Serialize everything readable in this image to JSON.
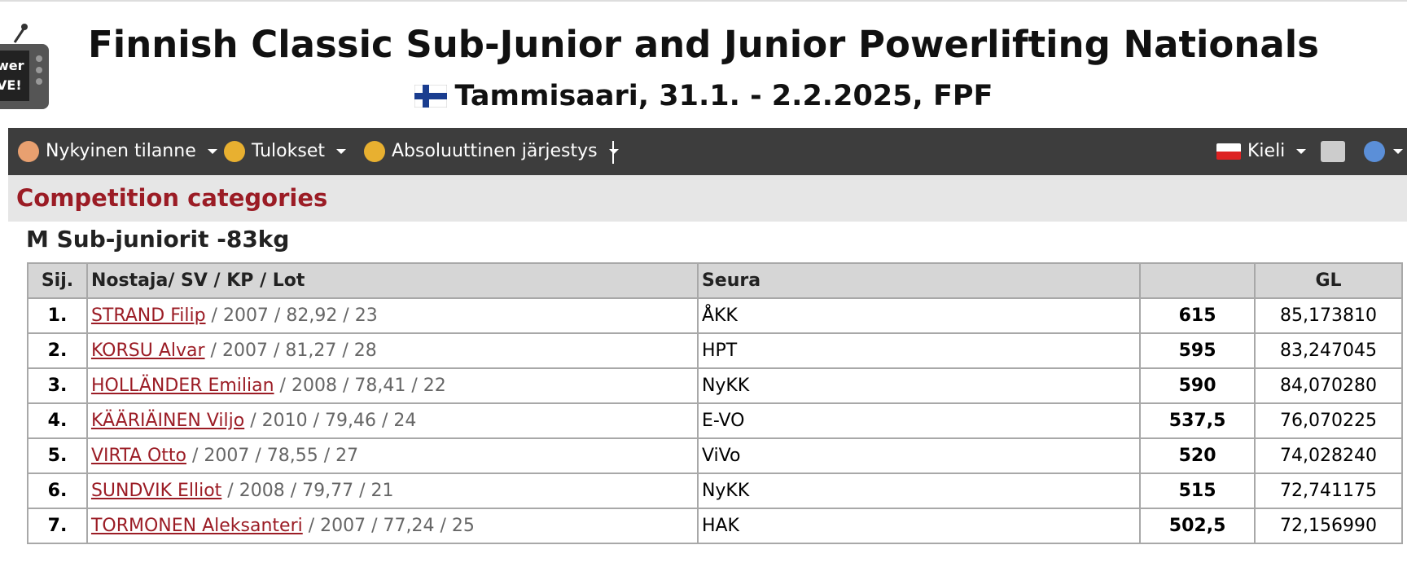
{
  "logo_text": [
    "wer",
    "VE!"
  ],
  "header": {
    "title": "Finnish Classic Sub-Junior and Junior Powerlifting Nationals",
    "subtitle": "Tammisaari, 31.1. - 2.2.2025, FPF"
  },
  "menu": {
    "left": [
      "Nykyinen tilanne",
      "Tulokset",
      "Absoluuttinen järjestys"
    ],
    "right": [
      "Kieli"
    ]
  },
  "section_title": "Competition categories",
  "category_title": "M Sub-juniorit -83kg",
  "table": {
    "headers": {
      "rank": "Sij.",
      "lifter": "Nostaja/ SV / KP / Lot",
      "club": "Seura",
      "gl": "GL"
    },
    "rows": [
      {
        "rank": "1.",
        "name": "STRAND Filip",
        "details": " / 2007 / 82,92 / 23",
        "club": "ÅKK",
        "total": "615",
        "gl": "85,173810"
      },
      {
        "rank": "2.",
        "name": "KORSU Alvar",
        "details": " / 2007 / 81,27 / 28",
        "club": "HPT",
        "total": "595",
        "gl": "83,247045"
      },
      {
        "rank": "3.",
        "name": "HOLLÄNDER Emilian",
        "details": " / 2008 / 78,41 / 22",
        "club": "NyKK",
        "total": "590",
        "gl": "84,070280"
      },
      {
        "rank": "4.",
        "name": "KÄÄRIÄINEN Viljo",
        "details": " / 2010 / 79,46 / 24",
        "club": "E-VO",
        "total": "537,5",
        "gl": "76,070225"
      },
      {
        "rank": "5.",
        "name": "VIRTA Otto",
        "details": " / 2007 / 78,55 / 27",
        "club": "ViVo",
        "total": "520",
        "gl": "74,028240"
      },
      {
        "rank": "6.",
        "name": "SUNDVIK Elliot",
        "details": " / 2008 / 79,77 / 21",
        "club": "NyKK",
        "total": "515",
        "gl": "72,741175"
      },
      {
        "rank": "7.",
        "name": "TORMONEN Aleksanteri",
        "details": " / 2007 / 77,24 / 25",
        "club": "HAK",
        "total": "502,5",
        "gl": "72,156990"
      }
    ]
  }
}
